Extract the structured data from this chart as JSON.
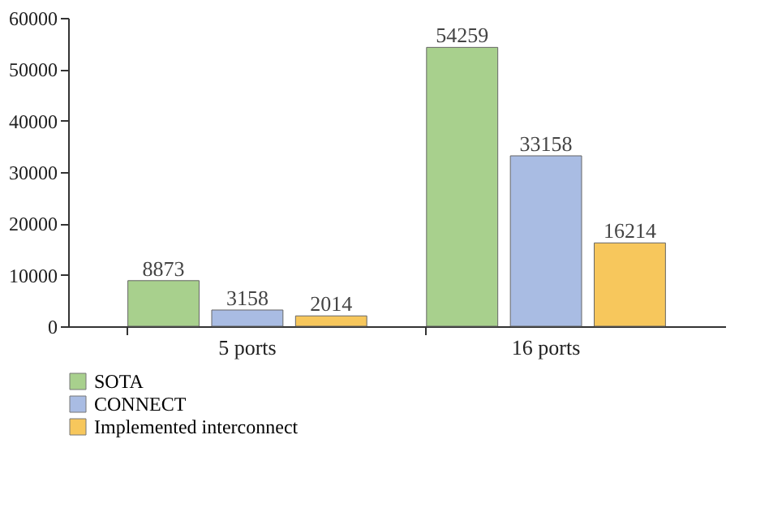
{
  "chart_data": {
    "type": "bar",
    "categories": [
      "5 ports",
      "16 ports"
    ],
    "series": [
      {
        "name": "SOTA",
        "color": "#a8d08d",
        "values": [
          8873,
          54259
        ]
      },
      {
        "name": "CONNECT",
        "color": "#a9bce3",
        "values": [
          3158,
          33158
        ]
      },
      {
        "name": "Implemented interconnect",
        "color": "#f7c75c",
        "values": [
          2014,
          16214
        ]
      }
    ],
    "ylim": [
      0,
      60000
    ],
    "yticks": [
      0,
      10000,
      20000,
      30000,
      40000,
      50000,
      60000
    ],
    "grid": false,
    "legend": "bottom left",
    "data_labels": true
  }
}
